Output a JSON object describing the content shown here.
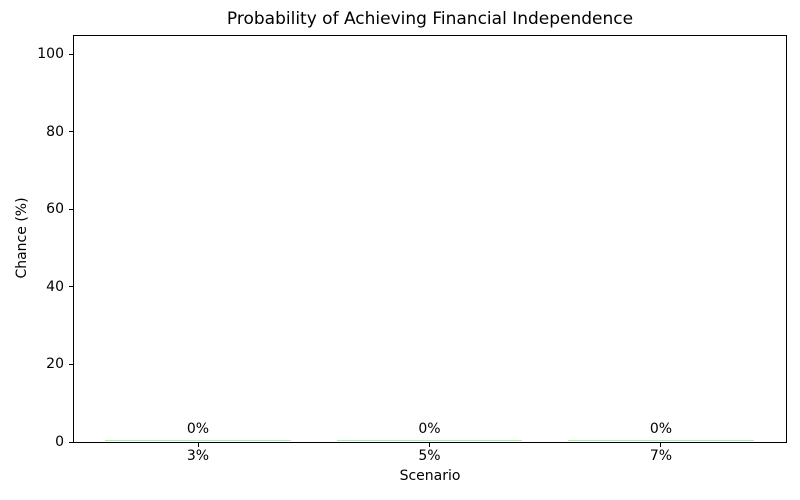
{
  "chart_data": {
    "type": "bar",
    "title": "Probability of Achieving Financial Independence",
    "xlabel": "Scenario",
    "ylabel": "Chance (%)",
    "categories": [
      "3%",
      "5%",
      "7%"
    ],
    "values": [
      0,
      0,
      0
    ],
    "value_labels": [
      "0%",
      "0%",
      "0%"
    ],
    "yticks": [
      0,
      20,
      40,
      60,
      80,
      100
    ],
    "ylim": [
      0,
      105
    ],
    "bar_color": "#90ee90",
    "spine_color": "#000000",
    "text_color": "#000000",
    "background_color": "#ffffff",
    "grid": false,
    "legend_position": "none",
    "bar_width_fraction": 0.8
  }
}
